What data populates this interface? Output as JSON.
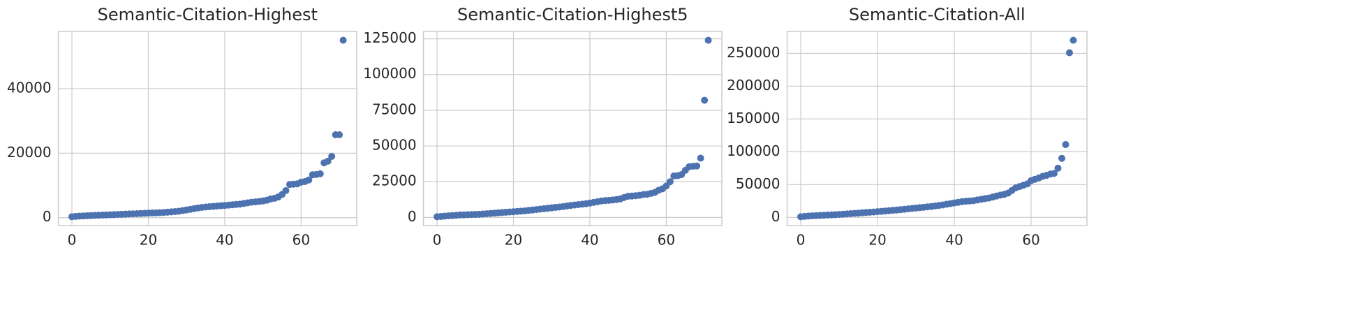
{
  "chart_data": [
    {
      "type": "scatter",
      "title": "Semantic-Citation-Highest",
      "color": "#4c72b0",
      "grid": true,
      "x": [
        0,
        1,
        2,
        3,
        4,
        5,
        6,
        7,
        8,
        9,
        10,
        11,
        12,
        13,
        14,
        15,
        16,
        17,
        18,
        19,
        20,
        21,
        22,
        23,
        24,
        25,
        26,
        27,
        28,
        29,
        30,
        31,
        32,
        33,
        34,
        35,
        36,
        37,
        38,
        39,
        40,
        41,
        42,
        43,
        44,
        45,
        46,
        47,
        48,
        49,
        50,
        51,
        52,
        53,
        54,
        55,
        56,
        57,
        58,
        59,
        60,
        61,
        62,
        63,
        64,
        65,
        66,
        67,
        68,
        69,
        70,
        71
      ],
      "values": [
        300,
        400,
        500,
        550,
        600,
        650,
        700,
        750,
        800,
        850,
        900,
        950,
        1000,
        1050,
        1100,
        1150,
        1200,
        1250,
        1300,
        1350,
        1400,
        1450,
        1500,
        1550,
        1600,
        1700,
        1800,
        1900,
        2000,
        2200,
        2400,
        2600,
        2800,
        3000,
        3200,
        3300,
        3400,
        3500,
        3600,
        3700,
        3800,
        3900,
        4000,
        4100,
        4200,
        4400,
        4600,
        4800,
        4900,
        5000,
        5200,
        5400,
        5800,
        6000,
        6400,
        7200,
        8400,
        10300,
        10400,
        10500,
        11000,
        11200,
        11700,
        13300,
        13400,
        13600,
        17000,
        17500,
        19000,
        25700,
        25700,
        55000
      ],
      "xlim": [
        -3.55,
        74.55
      ],
      "ylim": [
        -2435,
        57735
      ],
      "xticks": [
        0,
        20,
        40,
        60
      ],
      "yticks": [
        0,
        20000,
        40000
      ]
    },
    {
      "type": "scatter",
      "title": "Semantic-Citation-Highest5",
      "color": "#4c72b0",
      "grid": true,
      "x": [
        0,
        1,
        2,
        3,
        4,
        5,
        6,
        7,
        8,
        9,
        10,
        11,
        12,
        13,
        14,
        15,
        16,
        17,
        18,
        19,
        20,
        21,
        22,
        23,
        24,
        25,
        26,
        27,
        28,
        29,
        30,
        31,
        32,
        33,
        34,
        35,
        36,
        37,
        38,
        39,
        40,
        41,
        42,
        43,
        44,
        45,
        46,
        47,
        48,
        49,
        50,
        51,
        52,
        53,
        54,
        55,
        56,
        57,
        58,
        59,
        60,
        61,
        62,
        63,
        64,
        65,
        66,
        67,
        68,
        69,
        70,
        71
      ],
      "values": [
        500,
        700,
        900,
        1100,
        1300,
        1500,
        1700,
        1800,
        1900,
        2000,
        2100,
        2200,
        2400,
        2600,
        2800,
        3000,
        3200,
        3400,
        3600,
        3800,
        4000,
        4200,
        4400,
        4600,
        4900,
        5200,
        5500,
        5800,
        6100,
        6400,
        6700,
        7000,
        7300,
        7600,
        8000,
        8400,
        8700,
        9000,
        9300,
        9600,
        10000,
        10500,
        11000,
        11500,
        11800,
        12000,
        12200,
        12500,
        13000,
        14000,
        14800,
        15000,
        15200,
        15500,
        16000,
        16200,
        16800,
        17500,
        19000,
        20000,
        22000,
        25000,
        29000,
        29200,
        30000,
        33000,
        35500,
        35800,
        36000,
        41500,
        82000,
        124000
      ],
      "xlim": [
        -3.55,
        74.55
      ],
      "ylim": [
        -5675,
        130175
      ],
      "xticks": [
        0,
        20,
        40,
        60
      ],
      "yticks": [
        0,
        25000,
        50000,
        75000,
        100000,
        125000
      ]
    },
    {
      "type": "scatter",
      "title": "Semantic-Citation-All",
      "color": "#4c72b0",
      "grid": true,
      "x": [
        0,
        1,
        2,
        3,
        4,
        5,
        6,
        7,
        8,
        9,
        10,
        11,
        12,
        13,
        14,
        15,
        16,
        17,
        18,
        19,
        20,
        21,
        22,
        23,
        24,
        25,
        26,
        27,
        28,
        29,
        30,
        31,
        32,
        33,
        34,
        35,
        36,
        37,
        38,
        39,
        40,
        41,
        42,
        43,
        44,
        45,
        46,
        47,
        48,
        49,
        50,
        51,
        52,
        53,
        54,
        55,
        56,
        57,
        58,
        59,
        60,
        61,
        62,
        63,
        64,
        65,
        66,
        67,
        68,
        69,
        70,
        71
      ],
      "values": [
        1000,
        1500,
        2000,
        2300,
        2600,
        2900,
        3200,
        3500,
        3800,
        4100,
        4500,
        4900,
        5300,
        5700,
        6100,
        6500,
        7000,
        7400,
        7800,
        8200,
        8700,
        9200,
        9700,
        10200,
        10700,
        11200,
        11800,
        12400,
        13000,
        13600,
        14200,
        14800,
        15400,
        16000,
        16600,
        17400,
        18200,
        19000,
        20000,
        21000,
        22000,
        23000,
        24000,
        24500,
        25000,
        25500,
        26500,
        27500,
        28500,
        29500,
        31000,
        32500,
        34000,
        35000,
        37000,
        41000,
        45000,
        47000,
        49000,
        51000,
        56000,
        58000,
        60000,
        62500,
        64000,
        66000,
        67000,
        75000,
        90000,
        111000,
        251000,
        270000
      ],
      "xlim": [
        -3.55,
        74.55
      ],
      "ylim": [
        -12450,
        283450
      ],
      "xticks": [
        0,
        20,
        40,
        60
      ],
      "yticks": [
        0,
        50000,
        100000,
        150000,
        200000,
        250000
      ]
    }
  ]
}
